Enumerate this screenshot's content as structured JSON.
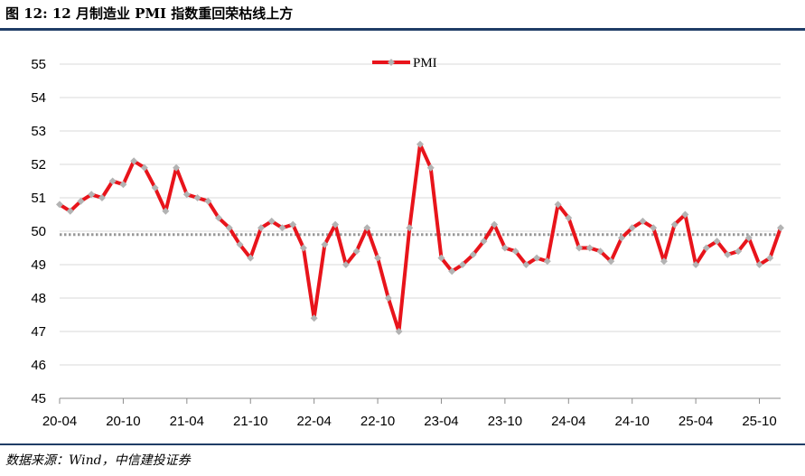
{
  "header": {
    "title": "图 12: 12 月制造业 PMI 指数重回荣枯线上方"
  },
  "footer": {
    "source": "数据来源：Wind，中信建投证券"
  },
  "chart_data": {
    "type": "line",
    "title": "图 12: 12 月制造业 PMI 指数重回荣枯线上方",
    "xlabel": "",
    "ylabel": "",
    "ylim": [
      45,
      55
    ],
    "yticks": [
      "45",
      "46",
      "47",
      "48",
      "49",
      "50",
      "51",
      "52",
      "53",
      "54",
      "55"
    ],
    "xticks": [
      {
        "label": "20-04",
        "index": 0
      },
      {
        "label": "20-10",
        "index": 6
      },
      {
        "label": "21-04",
        "index": 12
      },
      {
        "label": "21-10",
        "index": 18
      },
      {
        "label": "22-04",
        "index": 24
      },
      {
        "label": "22-10",
        "index": 30
      },
      {
        "label": "23-04",
        "index": 36
      },
      {
        "label": "23-10",
        "index": 42
      },
      {
        "label": "24-04",
        "index": 48
      },
      {
        "label": "24-10",
        "index": 54
      },
      {
        "label": "25-04",
        "index": 60
      },
      {
        "label": "25-10",
        "index": 66
      }
    ],
    "grid": true,
    "legend": "top-center",
    "reference_line": {
      "y": 49.9,
      "style": "dotted",
      "color": "#999999"
    },
    "series": [
      {
        "name": "PMI",
        "color": "#e8141b",
        "marker_color": "#b3b3b3",
        "values": [
          50.8,
          50.6,
          50.9,
          51.1,
          51.0,
          51.5,
          51.4,
          52.1,
          51.9,
          51.3,
          50.6,
          51.9,
          51.1,
          51.0,
          50.9,
          50.4,
          50.1,
          49.6,
          49.2,
          50.1,
          50.3,
          50.1,
          50.2,
          49.5,
          47.4,
          49.6,
          50.2,
          49.0,
          49.4,
          50.1,
          49.2,
          48.0,
          47.0,
          50.1,
          52.6,
          51.9,
          49.2,
          48.8,
          49.0,
          49.3,
          49.7,
          50.2,
          49.5,
          49.4,
          49.0,
          49.2,
          49.1,
          50.8,
          50.4,
          49.5,
          49.5,
          49.4,
          49.1,
          49.8,
          50.1,
          50.3,
          50.1,
          49.1,
          50.2,
          50.5,
          49.0,
          49.5,
          49.7,
          49.3,
          49.4,
          49.8,
          49.0,
          49.2,
          50.1
        ]
      }
    ]
  }
}
